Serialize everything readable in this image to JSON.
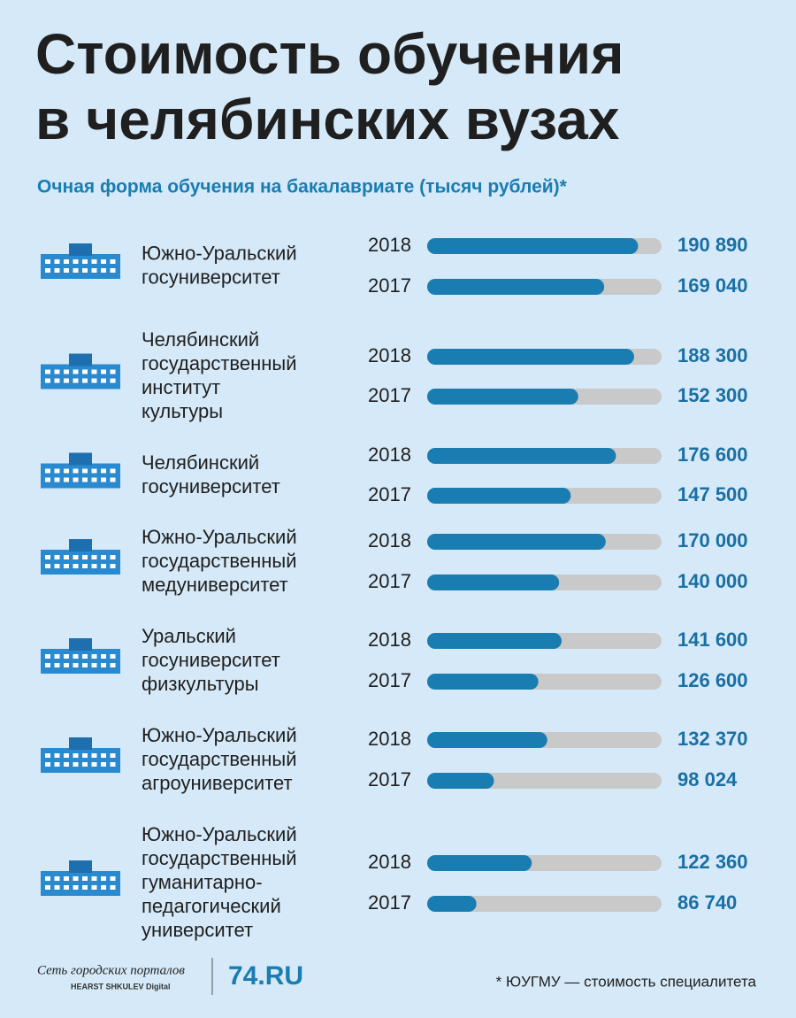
{
  "chart_data": {
    "type": "bar",
    "title": [
      "Стоимость обучения",
      "в челябинских вузах"
    ],
    "subtitle": "Очная форма обучения на бакалавриате (тысяч рублей)*",
    "categories": [
      [
        "Южно-Уральский",
        "госуниверситет"
      ],
      [
        "Челябинский",
        "государственный",
        "институт",
        "культуры"
      ],
      [
        "Челябинский",
        "госуниверситет"
      ],
      [
        "Южно-Уральский",
        "государственный",
        "медуниверситет"
      ],
      [
        "Уральский",
        "госуниверситет",
        "физкультуры"
      ],
      [
        "Южно-Уральский",
        "государственный",
        "агроуниверситет"
      ],
      [
        "Южно-Уральский",
        "государственный",
        "гуманитарно-",
        "педагогический",
        "университет"
      ]
    ],
    "series": [
      {
        "name": "2018",
        "color": "#1a7db1",
        "values": [
          190890,
          188300,
          176600,
          170000,
          141600,
          132370,
          122360
        ],
        "value_labels": [
          "190 890",
          "188 300",
          "176 600",
          "170 000",
          "141 600",
          "132 370",
          "122 360"
        ]
      },
      {
        "name": "2017",
        "color": "#1a7db1",
        "values": [
          169040,
          152300,
          147500,
          140000,
          126600,
          98024,
          86740
        ],
        "value_labels": [
          "169 040",
          "152 300",
          "147 500",
          "140 000",
          "126 600",
          "98 024",
          "86 740"
        ]
      }
    ],
    "xlim": [
      55000,
      206000
    ],
    "track_color": "#c9c9c9",
    "footnote": "* ЮУГМУ — стоимость специалитета",
    "logo_network": [
      "Сеть городских порталов",
      "HEARST SHKULEV Digital"
    ],
    "logo_site": "74.RU"
  }
}
